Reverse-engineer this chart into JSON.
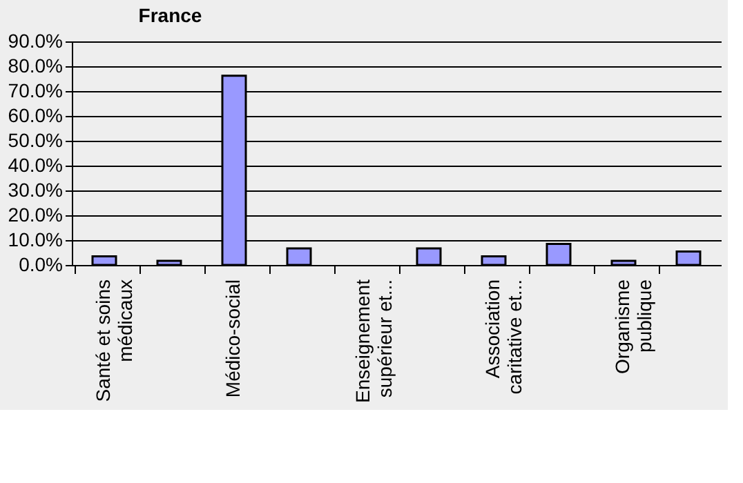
{
  "chart_data": {
    "type": "bar",
    "title": "France",
    "categories": [
      "Santé et soins médicaux",
      null,
      "Médico-social",
      null,
      "Enseignement supérieur et...",
      null,
      "Association caritative et...",
      null,
      "Organisme publique",
      null
    ],
    "values": [
      3.5,
      1.7,
      76.2,
      6.7,
      0,
      6.7,
      3.5,
      8.5,
      1.7,
      5.4
    ],
    "color": "#9999ff",
    "ylim": [
      0,
      90
    ],
    "yticks": [
      {
        "value": 0,
        "label": "0.0%"
      },
      {
        "value": 10,
        "label": "10.0%"
      },
      {
        "value": 20,
        "label": "20.0%"
      },
      {
        "value": 30,
        "label": "30.0%"
      },
      {
        "value": 40,
        "label": "40.0%"
      },
      {
        "value": 50,
        "label": "50.0%"
      },
      {
        "value": 60,
        "label": "60.0%"
      },
      {
        "value": 70,
        "label": "70.0%"
      },
      {
        "value": 80,
        "label": "80.0%"
      },
      {
        "value": 90,
        "label": "90.0%"
      }
    ],
    "grid": "y"
  }
}
